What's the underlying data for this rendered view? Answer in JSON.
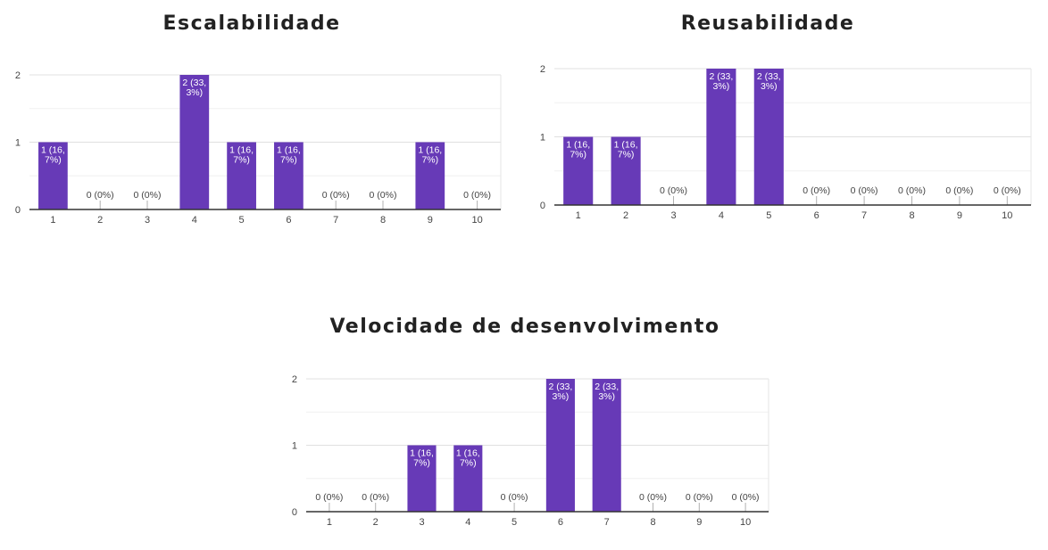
{
  "chart_data": [
    {
      "type": "bar",
      "title": "Escalabilidade",
      "categories": [
        "1",
        "2",
        "3",
        "4",
        "5",
        "6",
        "7",
        "8",
        "9",
        "10"
      ],
      "values": [
        1,
        0,
        0,
        2,
        1,
        1,
        0,
        0,
        1,
        0
      ],
      "data_labels": [
        [
          "1 (16,",
          "7%)"
        ],
        [
          "0 (0%)"
        ],
        [
          "0 (0%)"
        ],
        [
          "2 (33,",
          "3%)"
        ],
        [
          "1 (16,",
          "7%)"
        ],
        [
          "1 (16,",
          "7%)"
        ],
        [
          "0 (0%)"
        ],
        [
          "0 (0%)"
        ],
        [
          "1 (16,",
          "7%)"
        ],
        [
          "0 (0%)"
        ]
      ],
      "yticks": [
        "0",
        "1",
        "2"
      ],
      "ylim": [
        0,
        2
      ],
      "grid": true,
      "bar_color": "#673ab7"
    },
    {
      "type": "bar",
      "title": "Reusabilidade",
      "categories": [
        "1",
        "2",
        "3",
        "4",
        "5",
        "6",
        "7",
        "8",
        "9",
        "10"
      ],
      "values": [
        1,
        1,
        0,
        2,
        2,
        0,
        0,
        0,
        0,
        0
      ],
      "data_labels": [
        [
          "1 (16,",
          "7%)"
        ],
        [
          "1 (16,",
          "7%)"
        ],
        [
          "0 (0%)"
        ],
        [
          "2 (33,",
          "3%)"
        ],
        [
          "2 (33,",
          "3%)"
        ],
        [
          "0 (0%)"
        ],
        [
          "0 (0%)"
        ],
        [
          "0 (0%)"
        ],
        [
          "0 (0%)"
        ],
        [
          "0 (0%)"
        ]
      ],
      "yticks": [
        "0",
        "1",
        "2"
      ],
      "ylim": [
        0,
        2
      ],
      "grid": true,
      "bar_color": "#673ab7"
    },
    {
      "type": "bar",
      "title": "Velocidade de desenvolvimento",
      "categories": [
        "1",
        "2",
        "3",
        "4",
        "5",
        "6",
        "7",
        "8",
        "9",
        "10"
      ],
      "values": [
        0,
        0,
        1,
        1,
        0,
        2,
        2,
        0,
        0,
        0
      ],
      "data_labels": [
        [
          "0 (0%)"
        ],
        [
          "0 (0%)"
        ],
        [
          "1 (16,",
          "7%)"
        ],
        [
          "1 (16,",
          "7%)"
        ],
        [
          "0 (0%)"
        ],
        [
          "2 (33,",
          "3%)"
        ],
        [
          "2 (33,",
          "3%)"
        ],
        [
          "0 (0%)"
        ],
        [
          "0 (0%)"
        ],
        [
          "0 (0%)"
        ]
      ],
      "yticks": [
        "0",
        "1",
        "2"
      ],
      "ylim": [
        0,
        2
      ],
      "grid": true,
      "bar_color": "#673ab7"
    }
  ]
}
